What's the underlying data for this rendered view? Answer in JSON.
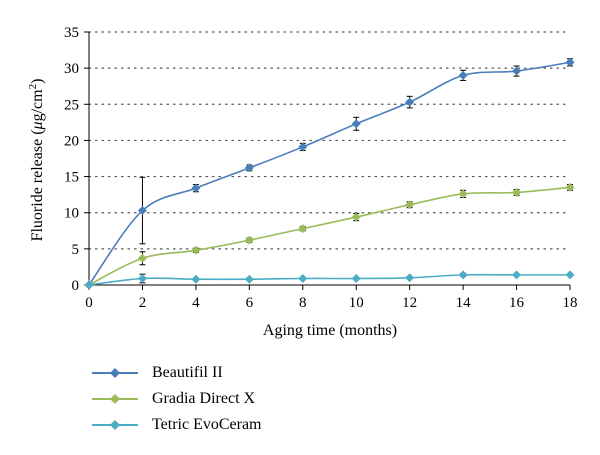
{
  "chart_data": {
    "type": "line",
    "title": "",
    "xlabel": "Aging time (months)",
    "ylabel_main": "Fluoride release (",
    "ylabel_mu": "μ",
    "ylabel_unit": "g/cm",
    "ylabel_sup": "2",
    "ylabel_close": ")",
    "xlim": [
      0,
      18
    ],
    "ylim": [
      0,
      35
    ],
    "xticks": [
      0,
      2,
      4,
      6,
      8,
      10,
      12,
      14,
      16,
      18
    ],
    "yticks": [
      0,
      5,
      10,
      15,
      20,
      25,
      30,
      35
    ],
    "grid": "horizontal-dotted",
    "legend_position": "bottom-left",
    "x": [
      0,
      2,
      4,
      6,
      8,
      10,
      12,
      14,
      16,
      18
    ],
    "series": [
      {
        "name": "Beautifil II",
        "color": "#4a7ebb",
        "values": [
          0,
          10.3,
          13.4,
          16.2,
          19.1,
          22.3,
          25.3,
          29.0,
          29.6,
          30.8
        ],
        "errors": [
          0,
          4.6,
          0.5,
          0.4,
          0.5,
          0.9,
          0.8,
          0.7,
          0.7,
          0.5
        ]
      },
      {
        "name": "Gradia Direct X",
        "color": "#9bbb59",
        "values": [
          0,
          3.7,
          4.8,
          6.2,
          7.8,
          9.4,
          11.1,
          12.6,
          12.8,
          13.5
        ],
        "errors": [
          0,
          0.9,
          0.3,
          0.3,
          0.3,
          0.5,
          0.4,
          0.5,
          0.4,
          0.4
        ]
      },
      {
        "name": "Tetric EvoCeram",
        "color": "#4bacc6",
        "values": [
          0,
          0.9,
          0.8,
          0.8,
          0.9,
          0.9,
          1.0,
          1.4,
          1.4,
          1.4
        ],
        "errors": [
          0,
          0.6,
          0.1,
          0.1,
          0.1,
          0.1,
          0.1,
          0.2,
          0.1,
          0.1
        ]
      }
    ]
  }
}
